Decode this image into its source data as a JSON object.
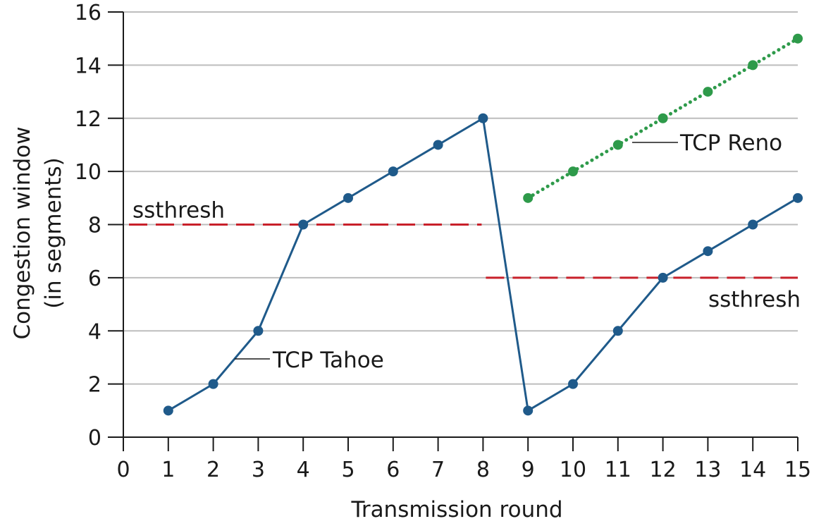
{
  "chart_data": {
    "type": "line",
    "xlabel": "Transmission round",
    "ylabel": [
      "Congestion window",
      "(in segments)"
    ],
    "xlim": [
      0,
      15
    ],
    "ylim": [
      0,
      16
    ],
    "xticks": [
      0,
      1,
      2,
      3,
      4,
      5,
      6,
      7,
      8,
      9,
      10,
      11,
      12,
      13,
      14,
      15
    ],
    "yticks": [
      0,
      2,
      4,
      6,
      8,
      10,
      12,
      14,
      16
    ],
    "grid": "horizontal",
    "series": [
      {
        "name": "TCP Tahoe",
        "color": "#1f5a8a",
        "style": "solid",
        "x": [
          1,
          2,
          3,
          4,
          5,
          6,
          7,
          8,
          9,
          10,
          11,
          12,
          13,
          14,
          15
        ],
        "y": [
          1,
          2,
          4,
          8,
          9,
          10,
          11,
          12,
          1,
          2,
          4,
          6,
          7,
          8,
          9
        ]
      },
      {
        "name": "TCP Reno",
        "color": "#2e9a4a",
        "style": "dotted",
        "x": [
          9,
          10,
          11,
          12,
          13,
          14,
          15
        ],
        "y": [
          9,
          10,
          11,
          12,
          13,
          14,
          15
        ]
      }
    ],
    "thresholds": [
      {
        "label": "ssthresh",
        "y": 8,
        "x": [
          0,
          8
        ],
        "color": "#c8202a"
      },
      {
        "label": "ssthresh",
        "y": 6,
        "x": [
          8,
          15
        ],
        "color": "#c8202a"
      }
    ]
  }
}
